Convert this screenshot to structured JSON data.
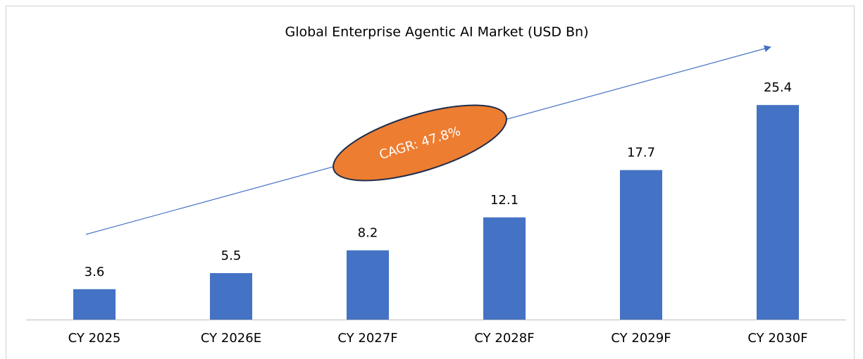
{
  "chart_data": {
    "type": "bar",
    "title": "Global Enterprise Agentic AI Market (USD Bn)",
    "annotation": "CAGR: 47.8%",
    "categories": [
      "CY 2025",
      "CY 2026E",
      "CY 2027F",
      "CY 2028F",
      "CY 2029F",
      "CY 2030F"
    ],
    "values": [
      3.6,
      5.5,
      8.2,
      12.1,
      17.7,
      25.4
    ],
    "color": "#4472c4",
    "ylim": [
      0,
      28
    ]
  }
}
